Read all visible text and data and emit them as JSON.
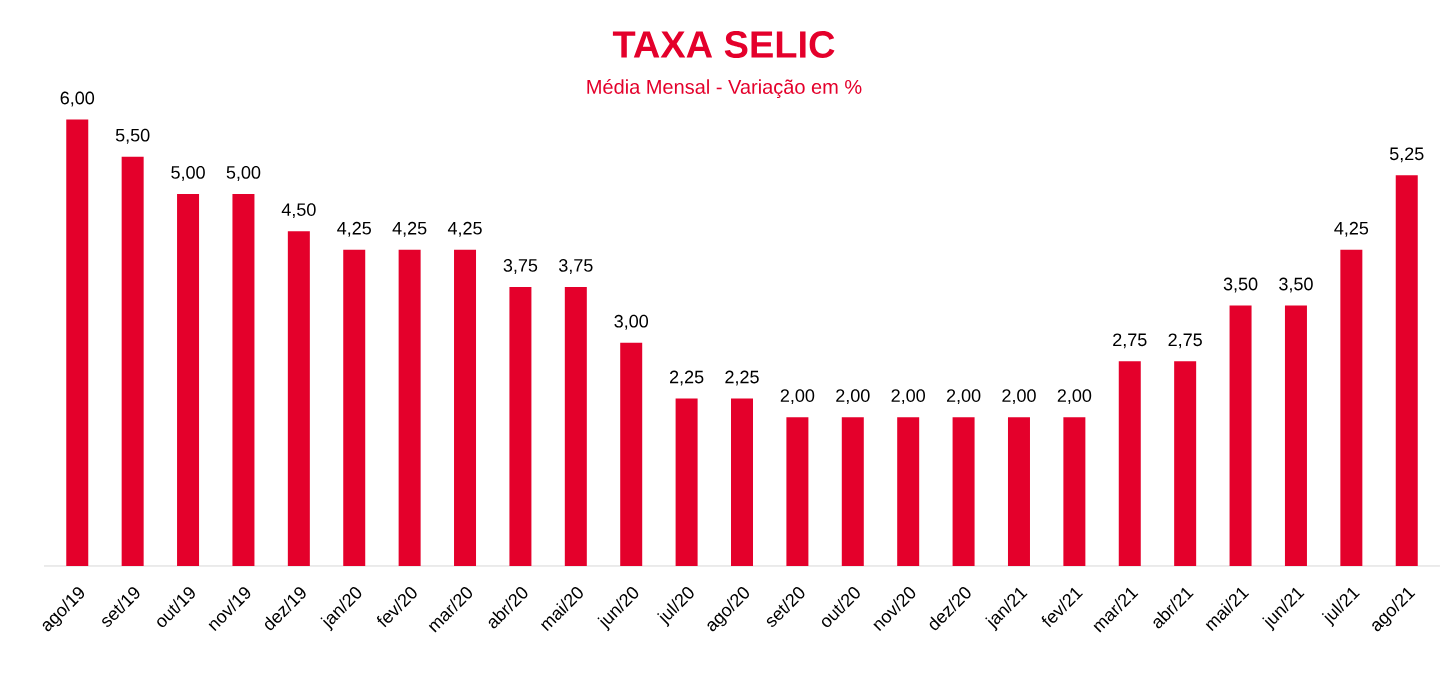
{
  "chart_data": {
    "type": "bar",
    "title": "TAXA SELIC",
    "subtitle": "Média Mensal - Variação em %",
    "categories": [
      "ago/19",
      "set/19",
      "out/19",
      "nov/19",
      "dez/19",
      "jan/20",
      "fev/20",
      "mar/20",
      "abr/20",
      "mai/20",
      "jun/20",
      "jul/20",
      "ago/20",
      "set/20",
      "out/20",
      "nov/20",
      "dez/20",
      "jan/21",
      "fev/21",
      "mar/21",
      "abr/21",
      "mai/21",
      "jun/21",
      "jul/21",
      "ago/21"
    ],
    "values": [
      6.0,
      5.5,
      5.0,
      5.0,
      4.5,
      4.25,
      4.25,
      4.25,
      3.75,
      3.75,
      3.0,
      2.25,
      2.25,
      2.0,
      2.0,
      2.0,
      2.0,
      2.0,
      2.0,
      2.75,
      2.75,
      3.5,
      3.5,
      4.25,
      5.25
    ],
    "value_labels": [
      "6,00",
      "5,50",
      "5,00",
      "5,00",
      "4,50",
      "4,25",
      "4,25",
      "4,25",
      "3,75",
      "3,75",
      "3,00",
      "2,25",
      "2,25",
      "2,00",
      "2,00",
      "2,00",
      "2,00",
      "2,00",
      "2,00",
      "2,75",
      "2,75",
      "3,50",
      "3,50",
      "4,25",
      "5,25"
    ],
    "color": "#e4002b"
  }
}
